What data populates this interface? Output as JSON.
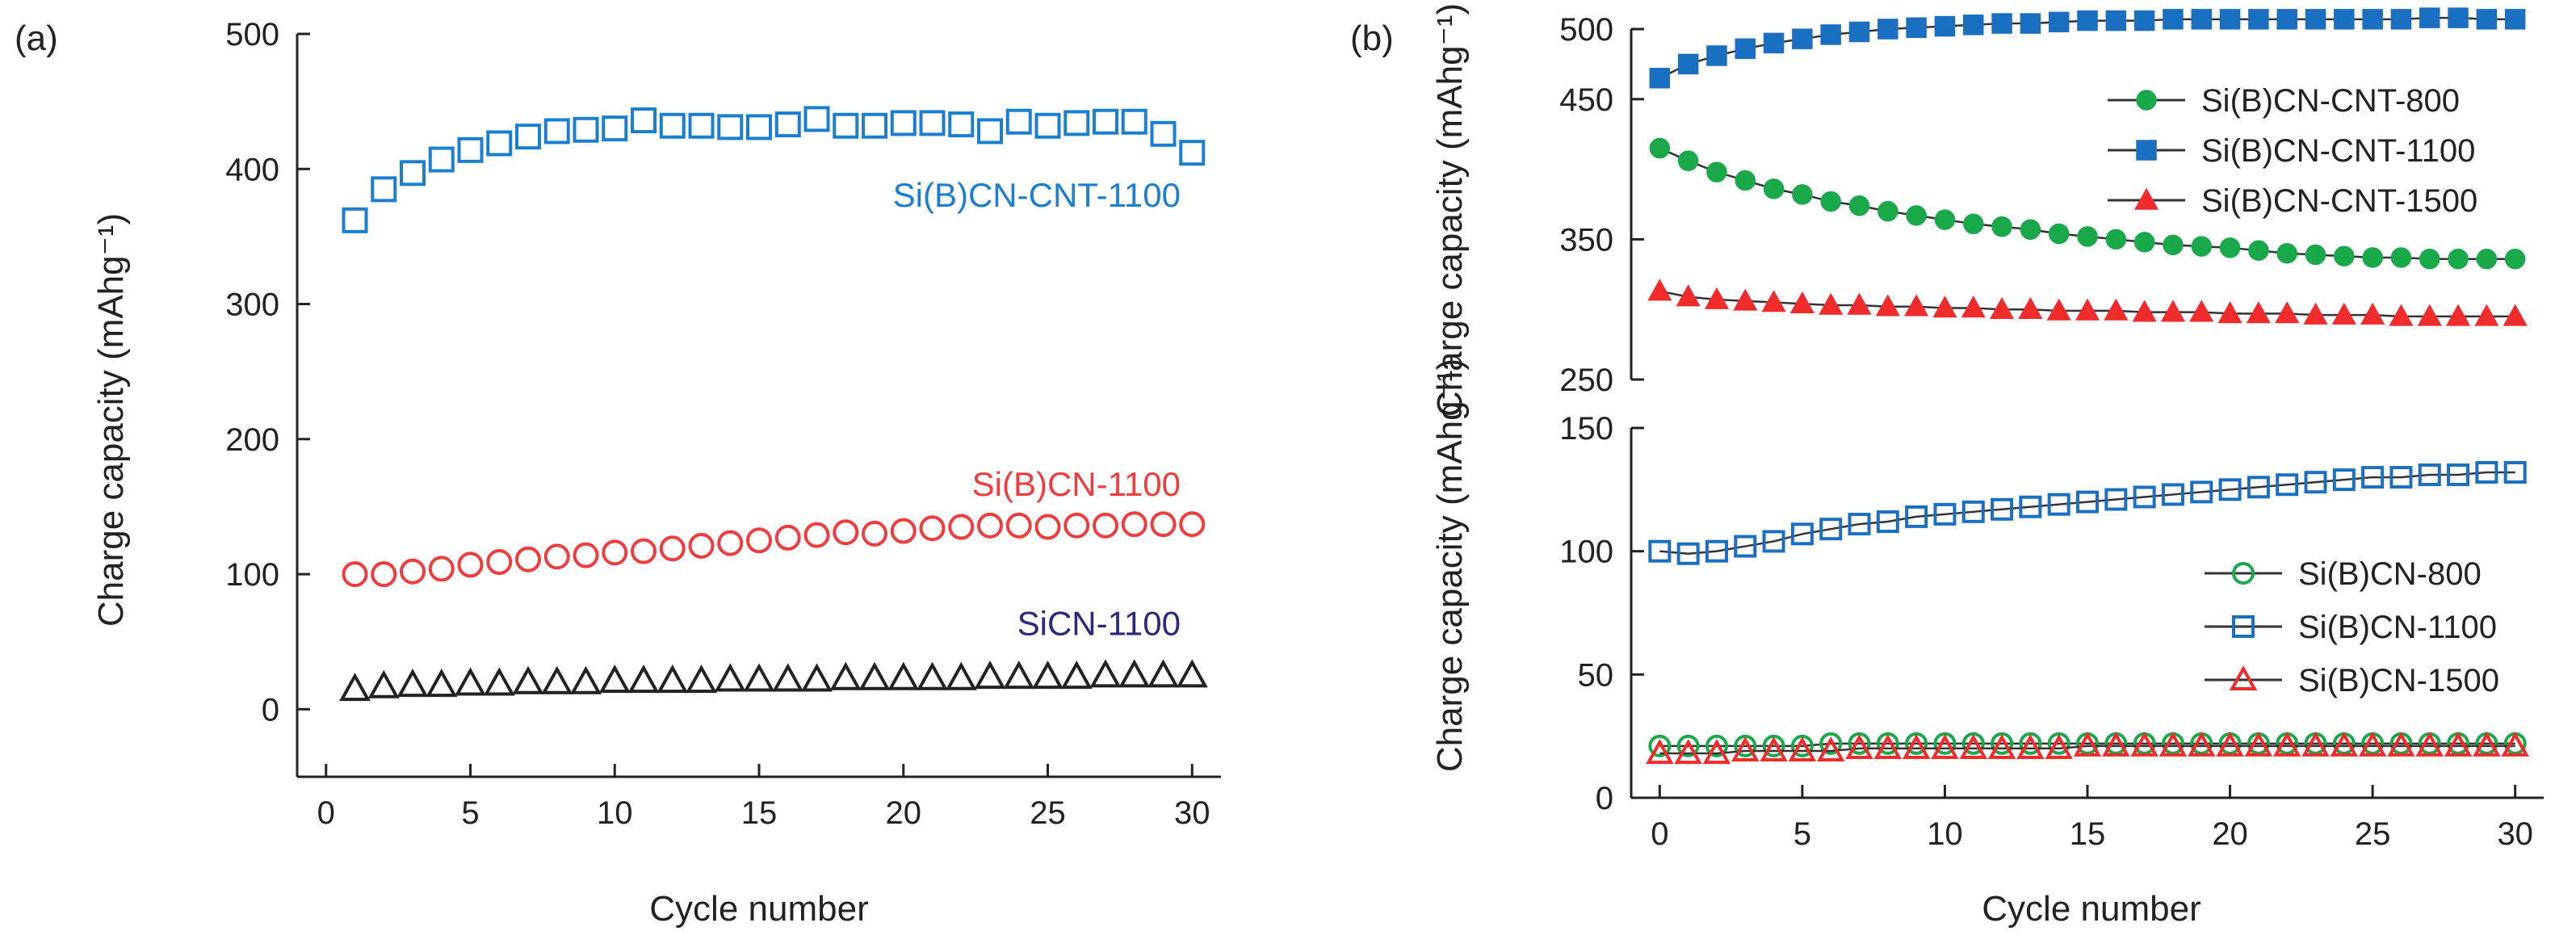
{
  "chart_data": [
    {
      "panel": "(a)",
      "type": "scatter",
      "xlabel": "Cycle number",
      "ylabel": "Charge capacity (mAhg⁻¹)",
      "xlim": [
        -1,
        31
      ],
      "ylim": [
        -50,
        500
      ],
      "xticks": [
        0,
        5,
        10,
        15,
        20,
        25,
        30
      ],
      "yticks": [
        0,
        100,
        200,
        300,
        400,
        500
      ],
      "legend": "inline",
      "series": [
        {
          "name": "Si(B)CN-CNT-1100",
          "marker": "square",
          "color": "#1a7fd0",
          "x": [
            1,
            2,
            3,
            4,
            5,
            6,
            7,
            8,
            9,
            10,
            11,
            12,
            13,
            14,
            15,
            16,
            17,
            18,
            19,
            20,
            21,
            22,
            23,
            24,
            25,
            26,
            27,
            28,
            29,
            30
          ],
          "values": [
            362,
            385,
            397,
            407,
            414,
            419,
            424,
            428,
            429,
            430,
            436,
            432,
            432,
            431,
            431,
            433,
            437,
            432,
            432,
            434,
            434,
            433,
            428,
            435,
            432,
            434,
            435,
            435,
            426,
            412
          ]
        },
        {
          "name": "Si(B)CN-1100",
          "marker": "circle",
          "color": "#ee3d3d",
          "x": [
            1,
            2,
            3,
            4,
            5,
            6,
            7,
            8,
            9,
            10,
            11,
            12,
            13,
            14,
            15,
            16,
            17,
            18,
            19,
            20,
            21,
            22,
            23,
            24,
            25,
            26,
            27,
            28,
            29,
            30
          ],
          "values": [
            100,
            100,
            102,
            104,
            107,
            109,
            111,
            113,
            114,
            116,
            117,
            119,
            121,
            123,
            125,
            127,
            129,
            131,
            130,
            132,
            134,
            135,
            136,
            136,
            135,
            136,
            136,
            137,
            137,
            137
          ]
        },
        {
          "name": "SiCN-1100",
          "marker": "triangle",
          "color": "#222222",
          "x": [
            1,
            2,
            3,
            4,
            5,
            6,
            7,
            8,
            9,
            10,
            11,
            12,
            13,
            14,
            15,
            16,
            17,
            18,
            19,
            20,
            21,
            22,
            23,
            24,
            25,
            26,
            27,
            28,
            29,
            30
          ],
          "values": [
            15,
            17,
            18,
            18,
            19,
            19,
            20,
            20,
            20,
            21,
            21,
            21,
            21,
            22,
            22,
            22,
            22,
            23,
            23,
            23,
            23,
            23,
            24,
            24,
            24,
            24,
            25,
            25,
            25,
            25
          ]
        }
      ]
    },
    {
      "panel": "(b)",
      "type": "line",
      "xlabel": "Cycle number",
      "ylabel": "Charge capacity (mAhg⁻¹)",
      "xlim": [
        -1,
        31
      ],
      "ylim_top": [
        250,
        500
      ],
      "ylim_bottom": [
        0,
        150
      ],
      "xticks": [
        0,
        5,
        10,
        15,
        20,
        25,
        30
      ],
      "yticks_top": [
        250,
        350,
        450,
        500
      ],
      "yticks_bottom": [
        0,
        50,
        100,
        150
      ],
      "legend": "inline",
      "series": [
        {
          "name": "Si(B)CN-CNT-800",
          "subplot": "top",
          "marker": "circle-filled",
          "color": "#19a84a",
          "x": [
            0,
            1,
            2,
            3,
            4,
            5,
            6,
            7,
            8,
            9,
            10,
            11,
            12,
            13,
            14,
            15,
            16,
            17,
            18,
            19,
            20,
            21,
            22,
            23,
            24,
            25,
            26,
            27,
            28,
            29,
            30
          ],
          "values": [
            415,
            406,
            398,
            392,
            386,
            382,
            377,
            374,
            370,
            367,
            364,
            361,
            359,
            357,
            354,
            352,
            350,
            348,
            346,
            345,
            344,
            342,
            340,
            339,
            338,
            337,
            337,
            336,
            336,
            336,
            336
          ]
        },
        {
          "name": "Si(B)CN-CNT-1100",
          "subplot": "top",
          "marker": "square-filled",
          "color": "#1a6fc0",
          "x": [
            0,
            1,
            2,
            3,
            4,
            5,
            6,
            7,
            8,
            9,
            10,
            11,
            12,
            13,
            14,
            15,
            16,
            17,
            18,
            19,
            20,
            21,
            22,
            23,
            24,
            25,
            26,
            27,
            28,
            29,
            30
          ],
          "values": [
            465,
            475,
            481,
            486,
            490,
            493,
            496,
            498,
            500,
            501,
            502,
            503,
            504,
            504,
            505,
            506,
            506,
            506,
            507,
            507,
            507,
            507,
            507,
            507,
            507,
            507,
            507,
            508,
            508,
            507,
            507
          ]
        },
        {
          "name": "Si(B)CN-CNT-1500",
          "subplot": "top",
          "marker": "triangle-filled",
          "color": "#ef2b2b",
          "x": [
            0,
            1,
            2,
            3,
            4,
            5,
            6,
            7,
            8,
            9,
            10,
            11,
            12,
            13,
            14,
            15,
            16,
            17,
            18,
            19,
            20,
            21,
            22,
            23,
            24,
            25,
            26,
            27,
            28,
            29,
            30
          ],
          "values": [
            313,
            309,
            307,
            306,
            305,
            304,
            303,
            303,
            302,
            302,
            301,
            301,
            300,
            300,
            299,
            299,
            299,
            298,
            298,
            298,
            297,
            297,
            297,
            296,
            296,
            296,
            295,
            295,
            295,
            295,
            295
          ]
        },
        {
          "name": "Si(B)CN-800",
          "subplot": "bottom",
          "marker": "circle",
          "color": "#19a84a",
          "x": [
            0,
            1,
            2,
            3,
            4,
            5,
            6,
            7,
            8,
            9,
            10,
            11,
            12,
            13,
            14,
            15,
            16,
            17,
            18,
            19,
            20,
            21,
            22,
            23,
            24,
            25,
            26,
            27,
            28,
            29,
            30
          ],
          "values": [
            21,
            21,
            21,
            21,
            21,
            21,
            22,
            22,
            22,
            22,
            22,
            22,
            22,
            22,
            22,
            22,
            22,
            22,
            22,
            22,
            22,
            22,
            22,
            22,
            22,
            22,
            22,
            22,
            22,
            22,
            22
          ]
        },
        {
          "name": "Si(B)CN-1100",
          "subplot": "bottom",
          "marker": "square",
          "color": "#1a6fc0",
          "x": [
            0,
            1,
            2,
            3,
            4,
            5,
            6,
            7,
            8,
            9,
            10,
            11,
            12,
            13,
            14,
            15,
            16,
            17,
            18,
            19,
            20,
            21,
            22,
            23,
            24,
            25,
            26,
            27,
            28,
            29,
            30
          ],
          "values": [
            100,
            99,
            100,
            102,
            104,
            107,
            109,
            111,
            112,
            114,
            115,
            116,
            117,
            118,
            119,
            120,
            121,
            122,
            123,
            124,
            125,
            126,
            127,
            128,
            129,
            130,
            130,
            131,
            131,
            132,
            132
          ]
        },
        {
          "name": "Si(B)CN-1500",
          "subplot": "bottom",
          "marker": "triangle",
          "color": "#ef2b2b",
          "x": [
            0,
            1,
            2,
            3,
            4,
            5,
            6,
            7,
            8,
            9,
            10,
            11,
            12,
            13,
            14,
            15,
            16,
            17,
            18,
            19,
            20,
            21,
            22,
            23,
            24,
            25,
            26,
            27,
            28,
            29,
            30
          ],
          "values": [
            18,
            18,
            18,
            19,
            19,
            19,
            19,
            20,
            20,
            20,
            20,
            20,
            20,
            20,
            20,
            21,
            21,
            21,
            21,
            21,
            21,
            21,
            21,
            21,
            21,
            21,
            21,
            21,
            21,
            21,
            21
          ]
        }
      ]
    }
  ]
}
